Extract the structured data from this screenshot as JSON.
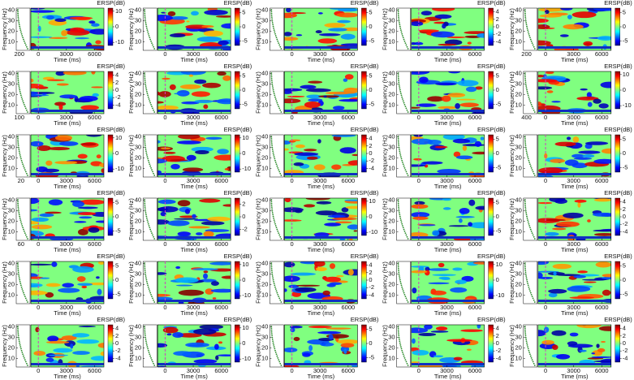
{
  "chart_data": [
    {
      "type": "heatmap",
      "side_label": "200",
      "xlabel": "Time (ms)",
      "ylabel": "Frequency (Hz)",
      "colorbar_label": "ERSP(dB)",
      "xlim": [
        -800,
        7000
      ],
      "ylim": [
        2,
        42
      ],
      "xticks": [
        0,
        3000,
        6000
      ],
      "yticks": [
        10,
        20,
        30,
        40
      ],
      "clim": [
        -12,
        12
      ],
      "cticks": [
        -10,
        0,
        10
      ]
    },
    {
      "type": "heatmap",
      "xlabel": "Time (ms)",
      "ylabel": "Frequency (Hz)",
      "colorbar_label": "ERSP(dB)",
      "xlim": [
        -800,
        7000
      ],
      "ylim": [
        2,
        42
      ],
      "xticks": [
        0,
        3000,
        6000
      ],
      "yticks": [
        10,
        20,
        30,
        40
      ],
      "clim": [
        -6.5,
        6.5
      ],
      "cticks": [
        -5,
        0,
        5
      ]
    },
    {
      "type": "heatmap",
      "xlabel": "Time (ms)",
      "ylabel": "Frequency (Hz)",
      "colorbar_label": "ERSP(dB)",
      "xlim": [
        -800,
        7000
      ],
      "ylim": [
        2,
        42
      ],
      "xticks": [
        0,
        3000,
        6000
      ],
      "yticks": [
        10,
        20,
        30,
        40
      ],
      "clim": [
        -6.5,
        6.5
      ],
      "cticks": [
        -5,
        0,
        5
      ]
    },
    {
      "type": "heatmap",
      "xlabel": "Time (ms)",
      "ylabel": "Frequency (Hz)",
      "colorbar_label": "ERSP(dB)",
      "xlim": [
        -800,
        7000
      ],
      "ylim": [
        2,
        42
      ],
      "xticks": [
        0,
        3000,
        6000
      ],
      "yticks": [
        10,
        20,
        30,
        40
      ],
      "clim": [
        -5,
        5
      ],
      "cticks": [
        -4,
        -2,
        0,
        2,
        4
      ]
    },
    {
      "type": "heatmap",
      "side_label": "200",
      "xlabel": "Time (ms)",
      "ylabel": "Frequency (Hz)",
      "colorbar_label": "ERSP(dB)",
      "xlim": [
        -800,
        7000
      ],
      "ylim": [
        2,
        42
      ],
      "xticks": [
        0,
        3000,
        6000
      ],
      "yticks": [
        10,
        20,
        30,
        40
      ],
      "clim": [
        -6.5,
        6.5
      ],
      "cticks": [
        -5,
        0,
        5
      ]
    },
    {
      "type": "heatmap",
      "side_label": "100",
      "xlabel": "Time (ms)",
      "ylabel": "Frequency (Hz)",
      "colorbar_label": "ERSP(dB)",
      "xlim": [
        -800,
        7000
      ],
      "ylim": [
        2,
        42
      ],
      "xticks": [
        0,
        3000,
        6000
      ],
      "yticks": [
        10,
        20,
        30,
        40
      ],
      "clim": [
        -5,
        5
      ],
      "cticks": [
        -4,
        -2,
        0,
        2,
        4
      ]
    },
    {
      "type": "heatmap",
      "xlabel": "Time (ms)",
      "ylabel": "Frequency (Hz)",
      "colorbar_label": "ERSP(dB)",
      "xlim": [
        -800,
        7000
      ],
      "ylim": [
        2,
        42
      ],
      "xticks": [
        0,
        3000,
        6000
      ],
      "yticks": [
        10,
        20,
        30,
        40
      ],
      "clim": [
        -6.5,
        6.5
      ],
      "cticks": [
        -5,
        0,
        5
      ]
    },
    {
      "type": "heatmap",
      "xlabel": "Time (ms)",
      "ylabel": "Frequency (Hz)",
      "colorbar_label": "ERSP(dB)",
      "xlim": [
        -800,
        7000
      ],
      "ylim": [
        2,
        42
      ],
      "xticks": [
        0,
        3000,
        6000
      ],
      "yticks": [
        10,
        20,
        30,
        40
      ],
      "clim": [
        -6.5,
        6.5
      ],
      "cticks": [
        -5,
        0,
        5
      ]
    },
    {
      "type": "heatmap",
      "xlabel": "Time (ms)",
      "ylabel": "Frequency (Hz)",
      "colorbar_label": "ERSP(dB)",
      "xlim": [
        -800,
        7000
      ],
      "ylim": [
        2,
        42
      ],
      "xticks": [
        0,
        3000,
        6000
      ],
      "yticks": [
        10,
        20,
        30,
        40
      ],
      "clim": [
        -6.5,
        6.5
      ],
      "cticks": [
        -5,
        0,
        5
      ]
    },
    {
      "type": "heatmap",
      "side_label": "400",
      "xlabel": "Time (ms)",
      "ylabel": "Frequency (Hz)",
      "colorbar_label": "ERSP(dB)",
      "xlim": [
        -800,
        7000
      ],
      "ylim": [
        2,
        42
      ],
      "xticks": [
        0,
        3000,
        6000
      ],
      "yticks": [
        10,
        20,
        30,
        40
      ],
      "clim": [
        -12,
        12
      ],
      "cticks": [
        -10,
        0,
        10
      ]
    },
    {
      "type": "heatmap",
      "side_label": "20",
      "xlabel": "Time (ms)",
      "ylabel": "Frequency (Hz)",
      "colorbar_label": "ERSP(dB)",
      "xlim": [
        -800,
        7000
      ],
      "ylim": [
        2,
        42
      ],
      "xticks": [
        0,
        3000,
        6000
      ],
      "yticks": [
        10,
        20,
        30,
        40
      ],
      "clim": [
        -12,
        12
      ],
      "cticks": [
        -10,
        0,
        10
      ]
    },
    {
      "type": "heatmap",
      "xlabel": "Time (ms)",
      "ylabel": "Frequency (Hz)",
      "colorbar_label": "ERSP(dB)",
      "xlim": [
        -800,
        7000
      ],
      "ylim": [
        2,
        42
      ],
      "xticks": [
        0,
        3000,
        6000
      ],
      "yticks": [
        10,
        20,
        30,
        40
      ],
      "clim": [
        -12,
        12
      ],
      "cticks": [
        -10,
        0,
        10
      ]
    },
    {
      "type": "heatmap",
      "xlabel": "Time (ms)",
      "ylabel": "Frequency (Hz)",
      "colorbar_label": "ERSP(dB)",
      "xlim": [
        -800,
        7000
      ],
      "ylim": [
        2,
        42
      ],
      "xticks": [
        0,
        3000,
        6000
      ],
      "yticks": [
        10,
        20,
        30,
        40
      ],
      "clim": [
        -5,
        5
      ],
      "cticks": [
        -4,
        -2,
        0,
        2,
        4
      ]
    },
    {
      "type": "heatmap",
      "xlabel": "Time (ms)",
      "ylabel": "Frequency (Hz)",
      "colorbar_label": "ERSP(dB)",
      "xlim": [
        -800,
        7000
      ],
      "ylim": [
        2,
        42
      ],
      "xticks": [
        0,
        3000,
        6000
      ],
      "yticks": [
        10,
        20,
        30,
        40
      ],
      "clim": [
        -6.5,
        6.5
      ],
      "cticks": [
        -5,
        0,
        5
      ]
    },
    {
      "type": "heatmap",
      "xlabel": "Time (ms)",
      "ylabel": "Frequency (Hz)",
      "colorbar_label": "ERSP(dB)",
      "xlim": [
        -800,
        7000
      ],
      "ylim": [
        2,
        42
      ],
      "xticks": [
        0,
        3000,
        6000
      ],
      "yticks": [
        10,
        20,
        30,
        40
      ],
      "clim": [
        -6.5,
        6.5
      ],
      "cticks": [
        -5,
        0,
        5
      ]
    },
    {
      "type": "heatmap",
      "side_label": "60",
      "xlabel": "Time (ms)",
      "ylabel": "Frequency (Hz)",
      "colorbar_label": "ERSP(dB)",
      "xlim": [
        -800,
        7000
      ],
      "ylim": [
        2,
        42
      ],
      "xticks": [
        0,
        3000,
        6000
      ],
      "yticks": [
        10,
        20,
        30,
        40
      ],
      "clim": [
        -6.5,
        6.5
      ],
      "cticks": [
        -5,
        0,
        5
      ]
    },
    {
      "type": "heatmap",
      "xlabel": "Time (ms)",
      "ylabel": "Frequency (Hz)",
      "colorbar_label": "ERSP(dB)",
      "xlim": [
        -800,
        7000
      ],
      "ylim": [
        2,
        42
      ],
      "xticks": [
        0,
        3000,
        6000
      ],
      "yticks": [
        10,
        20,
        30,
        40
      ],
      "clim": [
        -3,
        3
      ],
      "cticks": [
        -2,
        0,
        2
      ]
    },
    {
      "type": "heatmap",
      "xlabel": "Time (ms)",
      "ylabel": "Frequency (Hz)",
      "colorbar_label": "ERSP(dB)",
      "xlim": [
        -800,
        7000
      ],
      "ylim": [
        2,
        42
      ],
      "xticks": [
        0,
        3000,
        6000
      ],
      "yticks": [
        10,
        20,
        30,
        40
      ],
      "clim": [
        -12,
        12
      ],
      "cticks": [
        -10,
        0,
        10
      ]
    },
    {
      "type": "heatmap",
      "xlabel": "Time (ms)",
      "ylabel": "Frequency (Hz)",
      "colorbar_label": "ERSP(dB)",
      "xlim": [
        -800,
        7000
      ],
      "ylim": [
        2,
        42
      ],
      "xticks": [
        0,
        3000,
        6000
      ],
      "yticks": [
        10,
        20,
        30,
        40
      ],
      "clim": [
        -6.5,
        6.5
      ],
      "cticks": [
        -5,
        0,
        5
      ]
    },
    {
      "type": "heatmap",
      "xlabel": "Time (ms)",
      "ylabel": "Frequency (Hz)",
      "colorbar_label": "ERSP(dB)",
      "xlim": [
        -800,
        7000
      ],
      "ylim": [
        2,
        42
      ],
      "xticks": [
        0,
        3000,
        6000
      ],
      "yticks": [
        10,
        20,
        30,
        40
      ],
      "clim": [
        -5,
        5
      ],
      "cticks": [
        -4,
        -2,
        0,
        2,
        4
      ]
    },
    {
      "type": "heatmap",
      "xlabel": "Time (ms)",
      "ylabel": "Frequency (Hz)",
      "colorbar_label": "ERSP(dB)",
      "xlim": [
        -800,
        7000
      ],
      "ylim": [
        2,
        42
      ],
      "xticks": [
        0,
        3000,
        6000
      ],
      "yticks": [
        10,
        20,
        30,
        40
      ],
      "clim": [
        -6.5,
        6.5
      ],
      "cticks": [
        -5,
        0,
        5
      ]
    },
    {
      "type": "heatmap",
      "xlabel": "Time (ms)",
      "ylabel": "Frequency (Hz)",
      "colorbar_label": "ERSP(dB)",
      "xlim": [
        -800,
        7000
      ],
      "ylim": [
        2,
        42
      ],
      "xticks": [
        0,
        3000,
        6000
      ],
      "yticks": [
        10,
        20,
        30,
        40
      ],
      "clim": [
        -12,
        12
      ],
      "cticks": [
        -10,
        0,
        10
      ]
    },
    {
      "type": "heatmap",
      "xlabel": "Time (ms)",
      "ylabel": "Frequency (Hz)",
      "colorbar_label": "ERSP(dB)",
      "xlim": [
        -800,
        7000
      ],
      "ylim": [
        2,
        42
      ],
      "xticks": [
        0,
        3000,
        6000
      ],
      "yticks": [
        10,
        20,
        30,
        40
      ],
      "clim": [
        -5,
        5
      ],
      "cticks": [
        -4,
        -2,
        0,
        2,
        4
      ]
    },
    {
      "type": "heatmap",
      "xlabel": "Time (ms)",
      "ylabel": "Frequency (Hz)",
      "colorbar_label": "ERSP(dB)",
      "xlim": [
        -800,
        7000
      ],
      "ylim": [
        2,
        42
      ],
      "xticks": [
        0,
        3000,
        6000
      ],
      "yticks": [
        10,
        20,
        30,
        40
      ],
      "clim": [
        -12,
        12
      ],
      "cticks": [
        -10,
        0,
        10
      ]
    },
    {
      "type": "heatmap",
      "xlabel": "Time (ms)",
      "ylabel": "Frequency (Hz)",
      "colorbar_label": "ERSP(dB)",
      "xlim": [
        -800,
        7000
      ],
      "ylim": [
        2,
        42
      ],
      "xticks": [
        0,
        3000,
        6000
      ],
      "yticks": [
        10,
        20,
        30,
        40
      ],
      "clim": [
        -6.5,
        6.5
      ],
      "cticks": [
        -5,
        0,
        5
      ]
    },
    {
      "type": "heatmap",
      "xlabel": "Time (ms)",
      "ylabel": "Frequency (Hz)",
      "colorbar_label": "ERSP(dB)",
      "xlim": [
        -800,
        7000
      ],
      "ylim": [
        2,
        42
      ],
      "xticks": [
        0,
        3000,
        6000
      ],
      "yticks": [
        10,
        20,
        30,
        40
      ],
      "clim": [
        -5,
        5
      ],
      "cticks": [
        -4,
        -2,
        0,
        2,
        4
      ]
    },
    {
      "type": "heatmap",
      "xlabel": "Time (ms)",
      "ylabel": "Frequency (Hz)",
      "colorbar_label": "ERSP(dB)",
      "xlim": [
        -800,
        7000
      ],
      "ylim": [
        2,
        42
      ],
      "xticks": [
        0,
        3000,
        6000
      ],
      "yticks": [
        10,
        20,
        30,
        40
      ],
      "clim": [
        -12,
        12
      ],
      "cticks": [
        -10,
        0,
        10
      ]
    },
    {
      "type": "heatmap",
      "xlabel": "Time (ms)",
      "ylabel": "Frequency (Hz)",
      "colorbar_label": "ERSP(dB)",
      "xlim": [
        -800,
        7000
      ],
      "ylim": [
        2,
        42
      ],
      "xticks": [
        0,
        3000,
        6000
      ],
      "yticks": [
        10,
        20,
        30,
        40
      ],
      "clim": [
        -6.5,
        6.5
      ],
      "cticks": [
        -5,
        0,
        5
      ]
    },
    {
      "type": "heatmap",
      "xlabel": "Time (ms)",
      "ylabel": "Frequency (Hz)",
      "colorbar_label": "ERSP(dB)",
      "xlim": [
        -800,
        7000
      ],
      "ylim": [
        2,
        42
      ],
      "xticks": [
        0,
        3000,
        6000
      ],
      "yticks": [
        10,
        20,
        30,
        40
      ],
      "clim": [
        -5,
        5
      ],
      "cticks": [
        -4,
        -2,
        0,
        2,
        4
      ]
    },
    {
      "type": "heatmap",
      "xlabel": "Time (ms)",
      "ylabel": "Frequency (Hz)",
      "colorbar_label": "ERSP(dB)",
      "xlim": [
        -800,
        7000
      ],
      "ylim": [
        2,
        42
      ],
      "xticks": [
        0,
        3000,
        6000
      ],
      "yticks": [
        10,
        20,
        30,
        40
      ],
      "clim": [
        -5,
        5
      ],
      "cticks": [
        -4,
        -2,
        0,
        2,
        4
      ]
    }
  ]
}
